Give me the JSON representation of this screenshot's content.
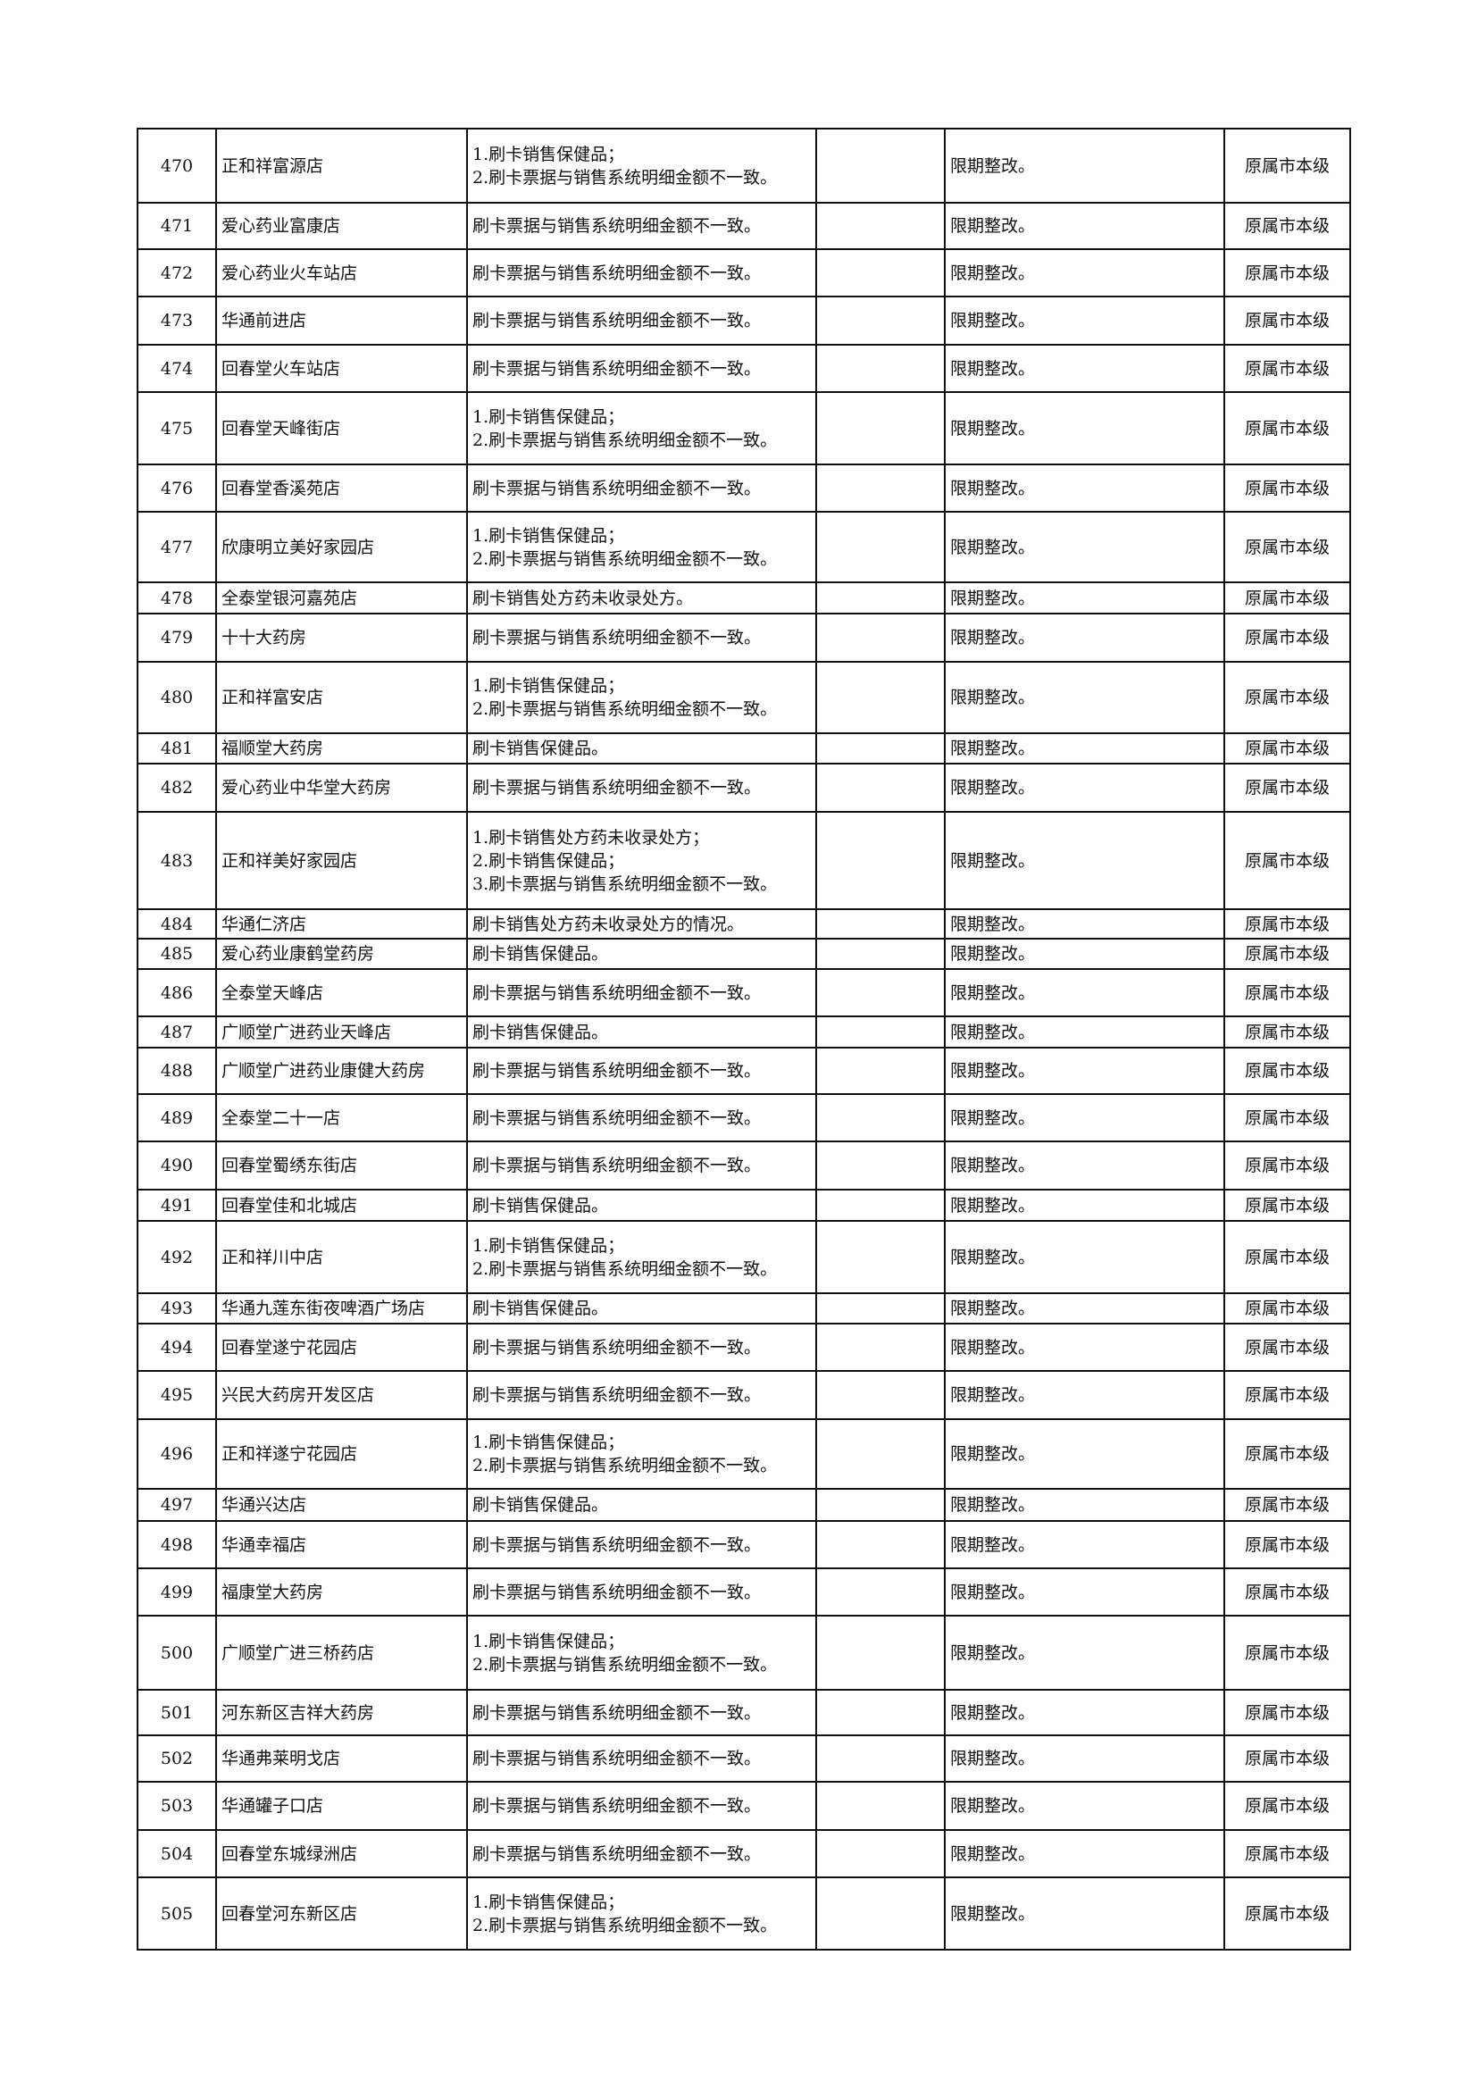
{
  "rows": [
    {
      "no": "470",
      "name": "正和祥富源店",
      "issues": [
        "1.刷卡销售保健品；",
        "2.刷卡票据与销售系统明细金额不一致。"
      ],
      "remark": "",
      "action": "限期整改。",
      "level": "原属市本级"
    },
    {
      "no": "471",
      "name": "爱心药业富康店",
      "issues": [
        "刷卡票据与销售系统明细金额不一致。"
      ],
      "remark": "",
      "action": "限期整改。",
      "level": "原属市本级"
    },
    {
      "no": "472",
      "name": "爱心药业火车站店",
      "issues": [
        "刷卡票据与销售系统明细金额不一致。"
      ],
      "remark": "",
      "action": "限期整改。",
      "level": "原属市本级"
    },
    {
      "no": "473",
      "name": "华通前进店",
      "issues": [
        "刷卡票据与销售系统明细金额不一致。"
      ],
      "remark": "",
      "action": "限期整改。",
      "level": "原属市本级"
    },
    {
      "no": "474",
      "name": "回春堂火车站店",
      "issues": [
        "刷卡票据与销售系统明细金额不一致。"
      ],
      "remark": "",
      "action": "限期整改。",
      "level": "原属市本级"
    },
    {
      "no": "475",
      "name": "回春堂天峰街店",
      "issues": [
        "1.刷卡销售保健品；",
        "2.刷卡票据与销售系统明细金额不一致。"
      ],
      "remark": "",
      "action": "限期整改。",
      "level": "原属市本级"
    },
    {
      "no": "476",
      "name": "回春堂香溪苑店",
      "issues": [
        "刷卡票据与销售系统明细金额不一致。"
      ],
      "remark": "",
      "action": "限期整改。",
      "level": "原属市本级"
    },
    {
      "no": "477",
      "name": "欣康明立美好家园店",
      "issues": [
        "1.刷卡销售保健品；",
        "2.刷卡票据与销售系统明细金额不一致。"
      ],
      "remark": "",
      "action": "限期整改。",
      "level": "原属市本级"
    },
    {
      "no": "478",
      "name": "全泰堂银河嘉苑店",
      "issues": [
        "刷卡销售处方药未收录处方。"
      ],
      "remark": "",
      "action": "限期整改。",
      "level": "原属市本级"
    },
    {
      "no": "479",
      "name": "十十大药房",
      "issues": [
        "刷卡票据与销售系统明细金额不一致。"
      ],
      "remark": "",
      "action": "限期整改。",
      "level": "原属市本级"
    },
    {
      "no": "480",
      "name": "正和祥富安店",
      "issues": [
        "1.刷卡销售保健品；",
        "2.刷卡票据与销售系统明细金额不一致。"
      ],
      "remark": "",
      "action": "限期整改。",
      "level": "原属市本级"
    },
    {
      "no": "481",
      "name": "福顺堂大药房",
      "issues": [
        "刷卡销售保健品。"
      ],
      "remark": "",
      "action": "限期整改。",
      "level": "原属市本级"
    },
    {
      "no": "482",
      "name": "爱心药业中华堂大药房",
      "issues": [
        "刷卡票据与销售系统明细金额不一致。"
      ],
      "remark": "",
      "action": "限期整改。",
      "level": "原属市本级"
    },
    {
      "no": "483",
      "name": "正和祥美好家园店",
      "issues": [
        "1.刷卡销售处方药未收录处方；",
        "2.刷卡销售保健品；",
        "3.刷卡票据与销售系统明细金额不一致。"
      ],
      "remark": "",
      "action": "限期整改。",
      "level": "原属市本级"
    },
    {
      "no": "484",
      "name": "华通仁济店",
      "issues": [
        "刷卡销售处方药未收录处方的情况。"
      ],
      "remark": "",
      "action": "限期整改。",
      "level": "原属市本级"
    },
    {
      "no": "485",
      "name": "爱心药业康鹤堂药房",
      "issues": [
        "刷卡销售保健品。"
      ],
      "remark": "",
      "action": "限期整改。",
      "level": "原属市本级"
    },
    {
      "no": "486",
      "name": "全泰堂天峰店",
      "issues": [
        "刷卡票据与销售系统明细金额不一致。"
      ],
      "remark": "",
      "action": "限期整改。",
      "level": "原属市本级"
    },
    {
      "no": "487",
      "name": "广顺堂广进药业天峰店",
      "issues": [
        "刷卡销售保健品。"
      ],
      "remark": "",
      "action": "限期整改。",
      "level": "原属市本级"
    },
    {
      "no": "488",
      "name": "广顺堂广进药业康健大药房",
      "issues": [
        "刷卡票据与销售系统明细金额不一致。"
      ],
      "remark": "",
      "action": "限期整改。",
      "level": "原属市本级"
    },
    {
      "no": "489",
      "name": "全泰堂二十一店",
      "issues": [
        "刷卡票据与销售系统明细金额不一致。"
      ],
      "remark": "",
      "action": "限期整改。",
      "level": "原属市本级"
    },
    {
      "no": "490",
      "name": "回春堂蜀绣东街店",
      "issues": [
        "刷卡票据与销售系统明细金额不一致。"
      ],
      "remark": "",
      "action": "限期整改。",
      "level": "原属市本级"
    },
    {
      "no": "491",
      "name": "回春堂佳和北城店",
      "issues": [
        "刷卡销售保健品。"
      ],
      "remark": "",
      "action": "限期整改。",
      "level": "原属市本级"
    },
    {
      "no": "492",
      "name": "正和祥川中店",
      "issues": [
        "1.刷卡销售保健品；",
        "2.刷卡票据与销售系统明细金额不一致。"
      ],
      "remark": "",
      "action": "限期整改。",
      "level": "原属市本级"
    },
    {
      "no": "493",
      "name": "华通九莲东街夜啤酒广场店",
      "issues": [
        "刷卡销售保健品。"
      ],
      "remark": "",
      "action": "限期整改。",
      "level": "原属市本级"
    },
    {
      "no": "494",
      "name": "回春堂遂宁花园店",
      "issues": [
        "刷卡票据与销售系统明细金额不一致。"
      ],
      "remark": "",
      "action": "限期整改。",
      "level": "原属市本级"
    },
    {
      "no": "495",
      "name": "兴民大药房开发区店",
      "issues": [
        "刷卡票据与销售系统明细金额不一致。"
      ],
      "remark": "",
      "action": "限期整改。",
      "level": "原属市本级"
    },
    {
      "no": "496",
      "name": "正和祥遂宁花园店",
      "issues": [
        "1.刷卡销售保健品；",
        "2.刷卡票据与销售系统明细金额不一致。"
      ],
      "remark": "",
      "action": "限期整改。",
      "level": "原属市本级"
    },
    {
      "no": "497",
      "name": "华通兴达店",
      "issues": [
        "刷卡销售保健品。"
      ],
      "remark": "",
      "action": "限期整改。",
      "level": "原属市本级"
    },
    {
      "no": "498",
      "name": "华通幸福店",
      "issues": [
        "刷卡票据与销售系统明细金额不一致。"
      ],
      "remark": "",
      "action": "限期整改。",
      "level": "原属市本级"
    },
    {
      "no": "499",
      "name": "福康堂大药房",
      "issues": [
        "刷卡票据与销售系统明细金额不一致。"
      ],
      "remark": "",
      "action": "限期整改。",
      "level": "原属市本级"
    },
    {
      "no": "500",
      "name": "广顺堂广进三桥药店",
      "issues": [
        "1.刷卡销售保健品；",
        "2.刷卡票据与销售系统明细金额不一致。"
      ],
      "remark": "",
      "action": "限期整改。",
      "level": "原属市本级"
    },
    {
      "no": "501",
      "name": "河东新区吉祥大药房",
      "issues": [
        "刷卡票据与销售系统明细金额不一致。"
      ],
      "remark": "",
      "action": "限期整改。",
      "level": "原属市本级"
    },
    {
      "no": "502",
      "name": "华通弗莱明戈店",
      "issues": [
        "刷卡票据与销售系统明细金额不一致。"
      ],
      "remark": "",
      "action": "限期整改。",
      "level": "原属市本级"
    },
    {
      "no": "503",
      "name": "华通罐子口店",
      "issues": [
        "刷卡票据与销售系统明细金额不一致。"
      ],
      "remark": "",
      "action": "限期整改。",
      "level": "原属市本级"
    },
    {
      "no": "504",
      "name": "回春堂东城绿洲店",
      "issues": [
        "刷卡票据与销售系统明细金额不一致。"
      ],
      "remark": "",
      "action": "限期整改。",
      "level": "原属市本级"
    },
    {
      "no": "505",
      "name": "回春堂河东新区店",
      "issues": [
        "1.刷卡销售保健品；",
        "2.刷卡票据与销售系统明细金额不一致。"
      ],
      "remark": "",
      "action": "限期整改。",
      "level": "原属市本级"
    }
  ]
}
